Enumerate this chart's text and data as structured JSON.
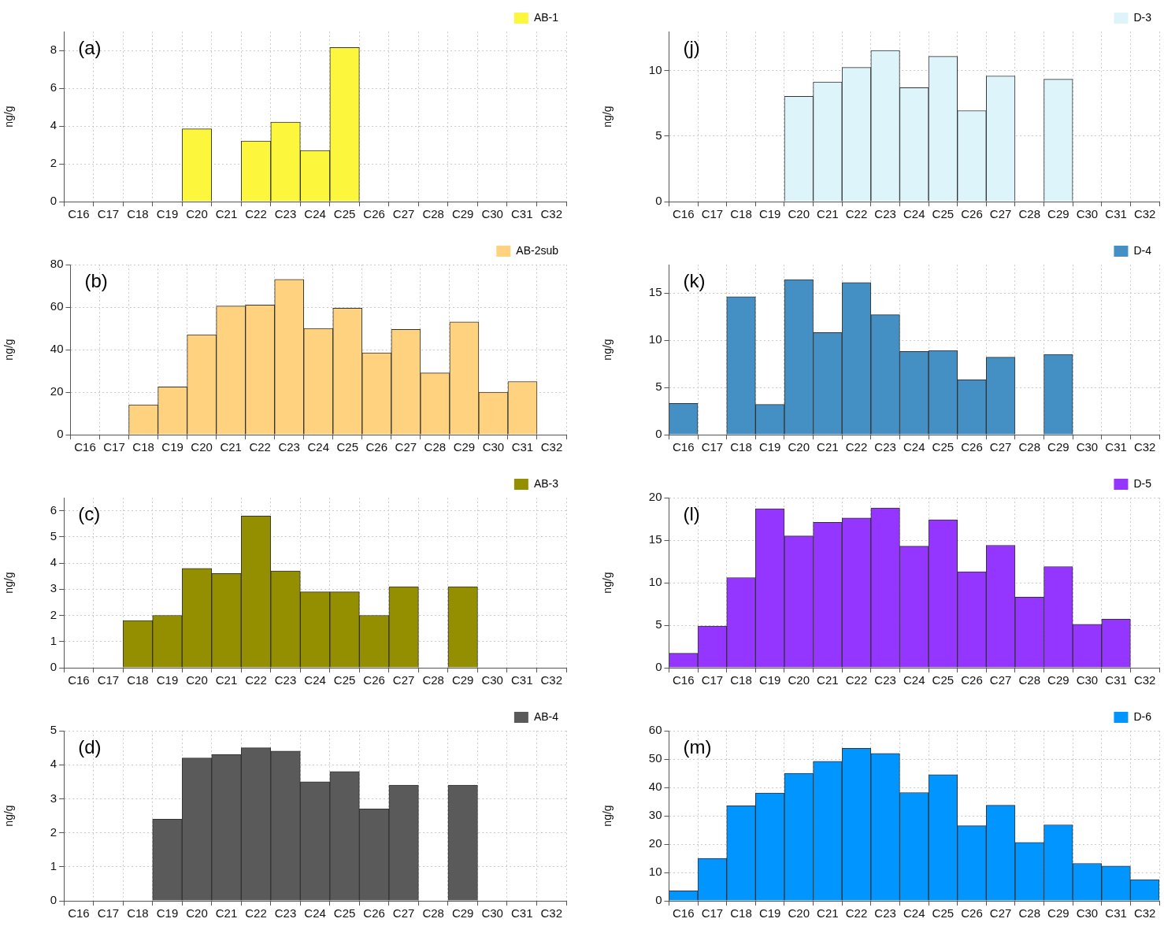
{
  "chart_data": [
    {
      "type": "bar",
      "annotations": [
        "(a)"
      ],
      "ylabel": "ng/g",
      "categories": [
        "C16",
        "C17",
        "C18",
        "C19",
        "C20",
        "C21",
        "C22",
        "C23",
        "C24",
        "C25",
        "C26",
        "C27",
        "C28",
        "C29",
        "C30",
        "C31",
        "C32"
      ],
      "series": [
        {
          "name": "AB-1",
          "color": "#fcf63c",
          "values": [
            null,
            null,
            null,
            null,
            3.85,
            null,
            3.2,
            4.2,
            2.7,
            8.15,
            null,
            null,
            null,
            null,
            null,
            null,
            null
          ]
        }
      ],
      "ylim": [
        0,
        9
      ],
      "yticks": [
        0,
        2,
        4,
        6,
        8
      ],
      "grid": true,
      "legend": "top right"
    },
    {
      "type": "bar",
      "annotations": [
        "(b)"
      ],
      "ylabel": "ng/g",
      "categories": [
        "C16",
        "C17",
        "C18",
        "C19",
        "C20",
        "C21",
        "C22",
        "C23",
        "C24",
        "C25",
        "C26",
        "C27",
        "C28",
        "C29",
        "C30",
        "C31",
        "C32"
      ],
      "series": [
        {
          "name": "AB-2sub",
          "color": "#ffd27f",
          "values": [
            null,
            null,
            14,
            22.5,
            47,
            60.5,
            61,
            73,
            50,
            59.5,
            38.5,
            49.5,
            29,
            53,
            20,
            25,
            null
          ]
        }
      ],
      "ylim": [
        0,
        80
      ],
      "yticks": [
        0,
        20,
        40,
        60,
        80
      ],
      "grid": true,
      "legend": "top right"
    },
    {
      "type": "bar",
      "annotations": [
        "(c)"
      ],
      "ylabel": "ng/g",
      "categories": [
        "C16",
        "C17",
        "C18",
        "C19",
        "C20",
        "C21",
        "C22",
        "C23",
        "C24",
        "C25",
        "C26",
        "C27",
        "C28",
        "C29",
        "C30",
        "C31",
        "C32"
      ],
      "series": [
        {
          "name": "AB-3",
          "color": "#948f00",
          "values": [
            null,
            null,
            1.8,
            2.0,
            3.8,
            3.6,
            5.8,
            3.7,
            2.9,
            2.9,
            2.0,
            3.1,
            null,
            3.1,
            null,
            null,
            null
          ]
        }
      ],
      "ylim": [
        0,
        6.5
      ],
      "yticks": [
        0,
        1,
        2,
        3,
        4,
        5,
        6
      ],
      "grid": true,
      "legend": "top right"
    },
    {
      "type": "bar",
      "annotations": [
        "(d)"
      ],
      "ylabel": "ng/g",
      "categories": [
        "C16",
        "C17",
        "C18",
        "C19",
        "C20",
        "C21",
        "C22",
        "C23",
        "C24",
        "C25",
        "C26",
        "C27",
        "C28",
        "C29",
        "C30",
        "C31",
        "C32"
      ],
      "series": [
        {
          "name": "AB-4",
          "color": "#5a5a5a",
          "values": [
            null,
            null,
            null,
            2.4,
            4.2,
            4.3,
            4.5,
            4.4,
            3.5,
            3.8,
            2.7,
            3.4,
            null,
            3.4,
            null,
            null,
            null
          ]
        }
      ],
      "ylim": [
        0,
        5
      ],
      "yticks": [
        0,
        1,
        2,
        3,
        4,
        5
      ],
      "grid": true,
      "legend": "top right"
    },
    {
      "type": "bar",
      "annotations": [
        "(j)"
      ],
      "ylabel": "ng/g",
      "categories": [
        "C16",
        "C17",
        "C18",
        "C19",
        "C20",
        "C21",
        "C22",
        "C23",
        "C24",
        "C25",
        "C26",
        "C27",
        "C28",
        "C29",
        "C30",
        "C31",
        "C32"
      ],
      "series": [
        {
          "name": "D-3",
          "color": "#ddf4fb",
          "values": [
            null,
            null,
            null,
            null,
            8.05,
            9.15,
            10.25,
            11.55,
            8.7,
            11.1,
            6.95,
            9.6,
            null,
            9.35,
            null,
            null,
            null
          ]
        }
      ],
      "ylim": [
        0,
        13
      ],
      "yticks": [
        0,
        5,
        10
      ],
      "grid": true,
      "legend": "top right"
    },
    {
      "type": "bar",
      "annotations": [
        "(k)"
      ],
      "ylabel": "ng/g",
      "categories": [
        "C16",
        "C17",
        "C18",
        "C19",
        "C20",
        "C21",
        "C22",
        "C23",
        "C24",
        "C25",
        "C26",
        "C27",
        "C28",
        "C29",
        "C30",
        "C31",
        "C32"
      ],
      "series": [
        {
          "name": "D-4",
          "color": "#4490c4",
          "values": [
            3.3,
            null,
            14.6,
            3.2,
            16.4,
            10.8,
            16.1,
            12.7,
            8.8,
            8.9,
            5.8,
            8.2,
            null,
            8.5,
            null,
            null,
            null
          ]
        }
      ],
      "ylim": [
        0,
        18
      ],
      "yticks": [
        0,
        5,
        10,
        15
      ],
      "grid": true,
      "legend": "top right"
    },
    {
      "type": "bar",
      "annotations": [
        "(l)"
      ],
      "ylabel": "ng/g",
      "categories": [
        "C16",
        "C17",
        "C18",
        "C19",
        "C20",
        "C21",
        "C22",
        "C23",
        "C24",
        "C25",
        "C26",
        "C27",
        "C28",
        "C29",
        "C30",
        "C31",
        "C32"
      ],
      "series": [
        {
          "name": "D-5",
          "color": "#9436ff",
          "values": [
            1.7,
            4.9,
            10.6,
            18.7,
            15.5,
            17.1,
            17.6,
            18.8,
            14.3,
            17.4,
            11.3,
            14.4,
            8.3,
            11.9,
            5.1,
            5.7,
            null
          ]
        }
      ],
      "ylim": [
        0,
        20
      ],
      "yticks": [
        0,
        5,
        10,
        15,
        20
      ],
      "grid": true,
      "legend": "top right"
    },
    {
      "type": "bar",
      "annotations": [
        "(m)"
      ],
      "ylabel": "ng/g",
      "categories": [
        "C16",
        "C17",
        "C18",
        "C19",
        "C20",
        "C21",
        "C22",
        "C23",
        "C24",
        "C25",
        "C26",
        "C27",
        "C28",
        "C29",
        "C30",
        "C31",
        "C32"
      ],
      "series": [
        {
          "name": "D-6",
          "color": "#0095ff",
          "values": [
            3.5,
            15,
            33.5,
            38,
            45,
            49.2,
            53.8,
            52,
            38.2,
            44.5,
            26.5,
            33.7,
            20.6,
            26.8,
            13.2,
            12.3,
            7.5
          ]
        }
      ],
      "ylim": [
        0,
        60
      ],
      "yticks": [
        0,
        10,
        20,
        30,
        40,
        50,
        60
      ],
      "grid": true,
      "legend": "top right"
    }
  ]
}
